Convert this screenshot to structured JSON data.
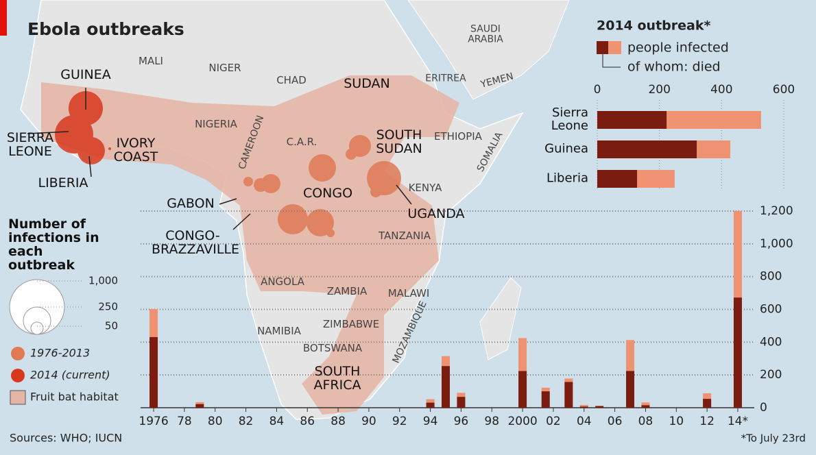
{
  "title": "Ebola outbreaks",
  "map_labels": [
    "MALI",
    "NIGER",
    "CHAD",
    "SUDAN",
    "ERITREA",
    "YEMEN",
    "SAUDI ARABIA",
    "NIGERIA",
    "CAMEROON",
    "C.A.R.",
    "SOUTH SUDAN",
    "ETHIOPIA",
    "SOMALIA",
    "KENYA",
    "GUINEA",
    "SIERRA LEONE",
    "IVORY COAST",
    "LIBERIA",
    "GABON",
    "CONGO",
    "UGANDA",
    "CONGO-BRAZZAVILLE",
    "TANZANIA",
    "ANGOLA",
    "ZAMBIA",
    "MALAWI",
    "ZIMBABWE",
    "NAMIBIA",
    "BOTSWANA",
    "MOZAMBIQUE",
    "SOUTH AFRICA"
  ],
  "bubble_legend": {
    "title": "Number of infections in each outbreak",
    "sizes": [
      {
        "value": 1000,
        "label": "1,000"
      },
      250,
      50
    ]
  },
  "legend": [
    "1976-2013",
    "2014 (current)",
    "Fruit bat habitat"
  ],
  "source": "Sources: WHO; IUCN",
  "footnote": "*To July 23rd",
  "chart_data": [
    {
      "type": "bar",
      "orientation": "horizontal",
      "title": "2014 outbreak*",
      "categories": [
        "Sierra Leone",
        "Guinea",
        "Liberia"
      ],
      "series": [
        {
          "name": "people infected",
          "color": "#ee9272",
          "values": [
            527,
            428,
            249
          ]
        },
        {
          "name": "of whom: died",
          "color": "#7b1c10",
          "values": [
            223,
            320,
            128
          ]
        }
      ],
      "xlim": [
        0,
        600
      ],
      "xticks": [
        0,
        200,
        400,
        600
      ],
      "grid": true
    },
    {
      "type": "bar",
      "x": [
        1976,
        1979,
        1994,
        1995,
        1996,
        2000,
        2001.5,
        2003,
        2004,
        2005,
        2007,
        2008,
        2012,
        2014
      ],
      "series": [
        {
          "color": "#ee9272",
          "values": [
            602,
            34,
            52,
            315,
            91,
            425,
            122,
            178,
            17,
            12,
            413,
            32,
            88,
            1201
          ]
        },
        {
          "color": "#7b1c10",
          "values": [
            431,
            22,
            31,
            254,
            66,
            224,
            100,
            157,
            7,
            10,
            224,
            15,
            54,
            672
          ]
        }
      ],
      "xlim": [
        1975.15,
        2014.85
      ],
      "xticks": [
        1976,
        {
          "value": 1978,
          "label": "78"
        },
        {
          "value": 1980,
          "label": "80"
        },
        {
          "value": 1982,
          "label": "82"
        },
        {
          "value": 1984,
          "label": "84"
        },
        {
          "value": 1986,
          "label": "86"
        },
        {
          "value": 1988,
          "label": "88"
        },
        {
          "value": 1990,
          "label": "90"
        },
        {
          "value": 1992,
          "label": "92"
        },
        {
          "value": 1994,
          "label": "94"
        },
        {
          "value": 1996,
          "label": "96"
        },
        {
          "value": 1998,
          "label": "98"
        },
        2000,
        {
          "value": 2002,
          "label": "02"
        },
        {
          "value": 2004,
          "label": "04"
        },
        {
          "value": 2006,
          "label": "06"
        },
        {
          "value": 2008,
          "label": "08"
        },
        {
          "value": 2010,
          "label": "10"
        },
        {
          "value": 2012,
          "label": "12"
        },
        {
          "value": 2014,
          "label": "14*"
        }
      ],
      "ylim": [
        0,
        1200
      ],
      "yticks": [
        0,
        200,
        400,
        600,
        800,
        {
          "value": 1000,
          "label": "1,000"
        },
        {
          "value": 1200,
          "label": "1,200"
        }
      ],
      "grid": true
    }
  ]
}
